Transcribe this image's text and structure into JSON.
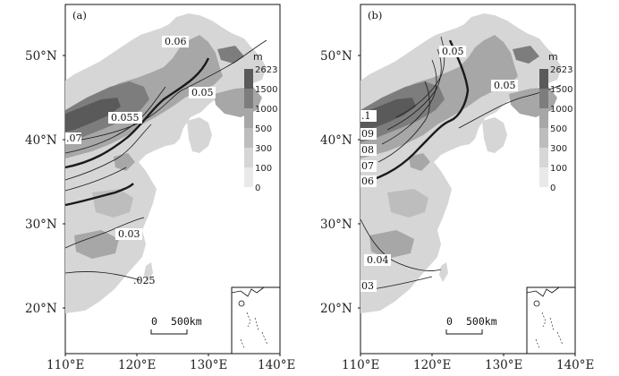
{
  "figure": {
    "colors": {
      "ocean": "#ffffff",
      "band_lt100": "#d6d6d6",
      "band_100_300": "#bdbdbd",
      "band_300_1000": "#a7a7a7",
      "band_1000_1500": "#7d7d7d",
      "band_gt1500": "#5a5a5a",
      "contour": "#1a1a1a"
    },
    "panels": [
      {
        "tag": "(a)",
        "lat_labels": [
          "50°N",
          "40°N",
          "30°N",
          "20°N"
        ],
        "lon_labels": [
          "110°E",
          "120°E",
          "130°E",
          "140°E"
        ],
        "contour_labels": [
          "0.06",
          "0.05",
          "0.055",
          ".07",
          "0.03",
          ".025"
        ],
        "legend": {
          "unit": "m",
          "levels": [
            "2623",
            "1500",
            "1000",
            "500",
            "300",
            "100",
            "0"
          ]
        },
        "scale_bar": {
          "start": "0",
          "end": "500km"
        }
      },
      {
        "tag": "(b)",
        "lat_labels": [
          "50°N",
          "40°N",
          "30°N",
          "20°N"
        ],
        "lon_labels": [
          "110°E",
          "120°E",
          "130°E",
          "140°E"
        ],
        "contour_labels": [
          "0.05",
          "0.05",
          ".1",
          "09",
          "08",
          "07",
          "06",
          "0.04",
          "03"
        ],
        "legend": {
          "unit": "m",
          "levels": [
            "2623",
            "1500",
            "1000",
            "500",
            "300",
            "100",
            "0"
          ]
        },
        "scale_bar": {
          "start": "0",
          "end": "500km"
        }
      }
    ]
  }
}
